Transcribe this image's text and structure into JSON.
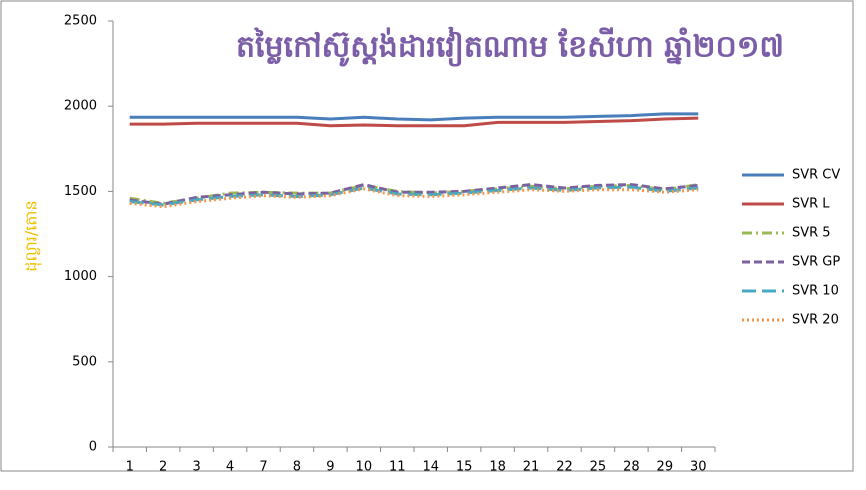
{
  "chart_data": {
    "type": "line",
    "title": "តម្លៃកៅស៊ូស្តង់ដារវៀតណាម ខែសីហា ឆ្នាំ២០១៧",
    "y_label": "ដុល្លារ/តោន",
    "categories": [
      "1",
      "2",
      "3",
      "4",
      "7",
      "8",
      "9",
      "10",
      "11",
      "14",
      "15",
      "18",
      "21",
      "22",
      "25",
      "28",
      "29",
      "30"
    ],
    "ylim": [
      0,
      2500
    ],
    "yticks": [
      0,
      500,
      1000,
      1500,
      2000,
      2500
    ],
    "grid": false,
    "legend": "right",
    "series": [
      {
        "name": "SVR CV",
        "color": "#4a7ebb",
        "style": "solid",
        "values": [
          1935,
          1935,
          1935,
          1935,
          1935,
          1935,
          1925,
          1935,
          1925,
          1920,
          1930,
          1935,
          1935,
          1935,
          1940,
          1945,
          1955,
          1955
        ]
      },
      {
        "name": "SVR L",
        "color": "#be4b48",
        "style": "solid",
        "values": [
          1895,
          1895,
          1900,
          1900,
          1900,
          1900,
          1885,
          1890,
          1885,
          1885,
          1885,
          1905,
          1905,
          1905,
          1910,
          1915,
          1925,
          1930
        ]
      },
      {
        "name": "SVR 5",
        "color": "#98b954",
        "style": "dashdot",
        "values": [
          1460,
          1430,
          1460,
          1490,
          1495,
          1490,
          1490,
          1535,
          1500,
          1490,
          1500,
          1515,
          1530,
          1515,
          1530,
          1535,
          1510,
          1540
        ]
      },
      {
        "name": "SVR GP",
        "color": "#7d60a0",
        "style": "dashed",
        "values": [
          1450,
          1425,
          1465,
          1480,
          1495,
          1485,
          1490,
          1540,
          1495,
          1495,
          1500,
          1520,
          1540,
          1520,
          1535,
          1540,
          1515,
          1535
        ]
      },
      {
        "name": "SVR 10",
        "color": "#46aac5",
        "style": "longdash",
        "values": [
          1440,
          1420,
          1450,
          1470,
          1480,
          1470,
          1480,
          1520,
          1485,
          1480,
          1490,
          1505,
          1520,
          1505,
          1520,
          1525,
          1500,
          1520
        ]
      },
      {
        "name": "SVR 20",
        "color": "#f79646",
        "style": "dotted",
        "values": [
          1430,
          1410,
          1440,
          1460,
          1475,
          1465,
          1475,
          1515,
          1475,
          1470,
          1480,
          1495,
          1510,
          1500,
          1510,
          1510,
          1495,
          1510
        ]
      }
    ]
  }
}
